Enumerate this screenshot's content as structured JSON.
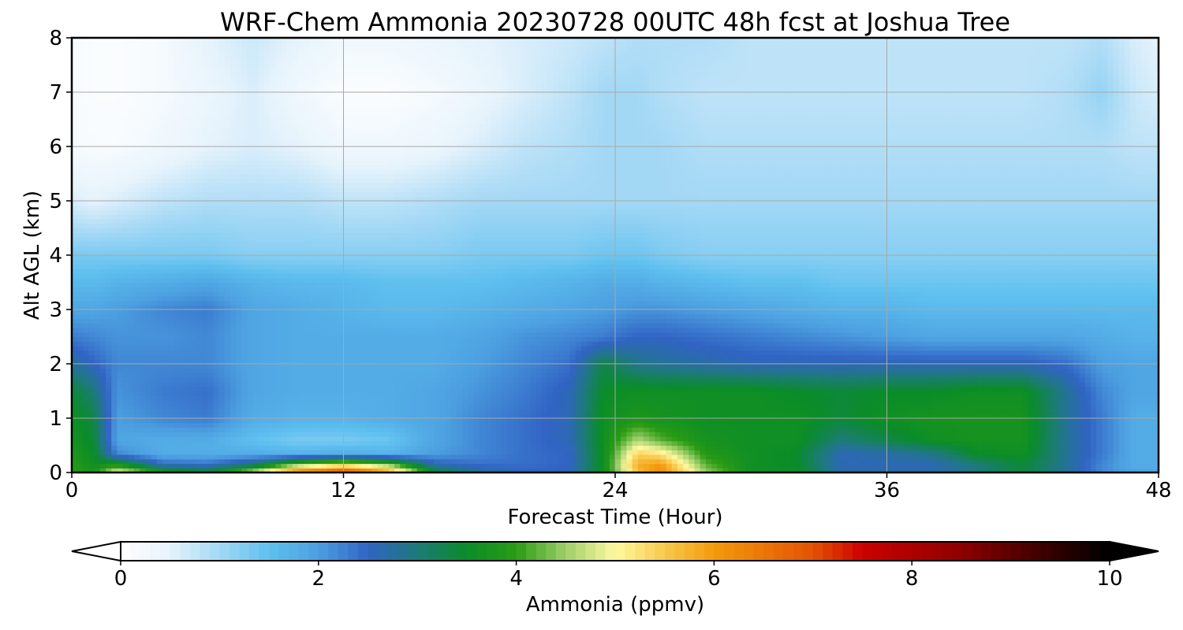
{
  "chart_data": {
    "type": "heatmap",
    "title": "WRF-Chem Ammonia  20230728 00UTC 48h fcst at Joshua Tree",
    "xlabel": "Forecast Time (Hour)",
    "ylabel": "Alt AGL (km)",
    "xlim": [
      0,
      48
    ],
    "ylim": [
      0,
      8
    ],
    "x_ticks": [
      "0",
      "12",
      "24",
      "36",
      "48"
    ],
    "y_ticks": [
      "0",
      "1",
      "2",
      "3",
      "4",
      "5",
      "6",
      "7",
      "8"
    ],
    "grid": true,
    "colorbar": {
      "label": "Ammonia  (ppmv)",
      "range": [
        0,
        10
      ],
      "ticks": [
        "0",
        "2",
        "4",
        "6",
        "8",
        "10"
      ],
      "extend": "both",
      "orientation": "horizontal",
      "stops": [
        {
          "v": 0.0,
          "c": "#ffffff"
        },
        {
          "v": 0.5,
          "c": "#e6f3fc"
        },
        {
          "v": 1.0,
          "c": "#a3d8f5"
        },
        {
          "v": 1.5,
          "c": "#5fc0ef"
        },
        {
          "v": 2.0,
          "c": "#4c9fe0"
        },
        {
          "v": 2.5,
          "c": "#3164c4"
        },
        {
          "v": 3.0,
          "c": "#1d7a7a"
        },
        {
          "v": 3.5,
          "c": "#0a8c28"
        },
        {
          "v": 4.0,
          "c": "#2a9b14"
        },
        {
          "v": 4.5,
          "c": "#9fcf6a"
        },
        {
          "v": 5.0,
          "c": "#fff9a0"
        },
        {
          "v": 5.5,
          "c": "#f8c94e"
        },
        {
          "v": 6.0,
          "c": "#f39a0c"
        },
        {
          "v": 7.0,
          "c": "#e45204"
        },
        {
          "v": 7.5,
          "c": "#cc0000"
        },
        {
          "v": 8.5,
          "c": "#8e0000"
        },
        {
          "v": 9.5,
          "c": "#2b0000"
        },
        {
          "v": 10.0,
          "c": "#000000"
        }
      ]
    },
    "x": [
      0,
      1,
      2,
      4,
      6,
      8,
      10,
      12,
      14,
      16,
      18,
      20,
      22,
      23.5,
      25,
      26,
      28,
      30,
      32,
      34,
      36,
      38,
      40,
      42,
      44,
      45.5,
      47,
      48
    ],
    "y": [
      0,
      0.15,
      0.35,
      0.6,
      1.0,
      1.5,
      2.0,
      2.5,
      3.0,
      3.5,
      4.0,
      5.0,
      6.0,
      7.0,
      8.0
    ],
    "z": [
      [
        4.0,
        3.8,
        5.0,
        4.0,
        3.6,
        4.8,
        6.5,
        7.2,
        6.0,
        3.6,
        2.9,
        2.6,
        2.6,
        3.6,
        5.6,
        6.2,
        4.5,
        3.6,
        3.6,
        2.7,
        2.7,
        2.7,
        3.0,
        3.4,
        2.8,
        2.2,
        1.9,
        1.9
      ],
      [
        3.9,
        3.6,
        3.8,
        2.5,
        2.4,
        3.0,
        4.4,
        5.0,
        4.4,
        2.6,
        2.4,
        2.4,
        2.5,
        3.6,
        5.8,
        6.0,
        4.2,
        3.6,
        3.5,
        2.6,
        2.6,
        2.6,
        3.0,
        3.4,
        2.8,
        2.2,
        1.8,
        1.8
      ],
      [
        3.8,
        3.5,
        2.2,
        1.8,
        1.8,
        1.8,
        1.7,
        1.8,
        1.7,
        2.0,
        2.2,
        2.4,
        2.5,
        3.6,
        5.4,
        5.2,
        3.9,
        3.6,
        3.5,
        2.6,
        2.7,
        2.9,
        3.5,
        3.6,
        2.8,
        2.3,
        1.8,
        1.8
      ],
      [
        3.7,
        3.4,
        1.9,
        1.8,
        1.8,
        1.5,
        1.3,
        1.3,
        1.4,
        1.9,
        2.2,
        2.4,
        2.6,
        3.6,
        4.6,
        4.2,
        3.7,
        3.6,
        3.6,
        3.0,
        3.3,
        3.6,
        3.7,
        3.7,
        2.8,
        2.3,
        1.8,
        1.8
      ],
      [
        3.6,
        3.3,
        2.0,
        2.2,
        2.3,
        1.8,
        1.7,
        1.7,
        1.8,
        1.9,
        2.2,
        2.4,
        2.6,
        3.6,
        3.8,
        3.7,
        3.6,
        3.6,
        3.6,
        3.4,
        3.6,
        3.7,
        3.7,
        3.7,
        2.8,
        2.3,
        1.8,
        1.8
      ],
      [
        3.4,
        3.0,
        2.1,
        2.3,
        2.4,
        1.9,
        1.8,
        1.8,
        1.8,
        1.9,
        2.1,
        2.3,
        2.6,
        3.5,
        3.6,
        3.6,
        3.6,
        3.6,
        3.5,
        3.4,
        3.5,
        3.5,
        3.6,
        3.6,
        2.8,
        2.2,
        1.9,
        1.9
      ],
      [
        2.8,
        2.5,
        2.2,
        2.2,
        2.2,
        1.9,
        1.8,
        1.8,
        1.8,
        1.8,
        2.0,
        2.2,
        2.4,
        3.3,
        2.9,
        2.8,
        2.7,
        2.6,
        2.6,
        2.6,
        2.6,
        2.6,
        2.6,
        2.6,
        2.4,
        2.0,
        1.9,
        1.9
      ],
      [
        2.3,
        2.2,
        2.1,
        2.1,
        2.2,
        1.9,
        1.8,
        1.8,
        1.8,
        1.8,
        1.9,
        2.1,
        2.2,
        2.3,
        2.5,
        2.5,
        2.4,
        2.3,
        2.2,
        2.1,
        2.0,
        1.9,
        1.9,
        1.9,
        1.9,
        1.8,
        1.7,
        1.7
      ],
      [
        1.9,
        1.9,
        2.0,
        2.2,
        2.3,
        1.9,
        1.8,
        1.7,
        1.6,
        1.6,
        1.7,
        1.8,
        1.9,
        2.0,
        2.1,
        2.1,
        2.0,
        1.9,
        1.8,
        1.7,
        1.7,
        1.6,
        1.6,
        1.6,
        1.6,
        1.6,
        1.6,
        1.6
      ],
      [
        1.6,
        1.6,
        1.7,
        1.8,
        1.9,
        1.7,
        1.6,
        1.6,
        1.5,
        1.5,
        1.5,
        1.6,
        1.7,
        1.8,
        1.8,
        1.7,
        1.6,
        1.5,
        1.5,
        1.4,
        1.4,
        1.4,
        1.4,
        1.4,
        1.4,
        1.4,
        1.4,
        1.4
      ],
      [
        1.3,
        1.3,
        1.3,
        1.3,
        1.3,
        1.2,
        1.2,
        1.2,
        1.2,
        1.2,
        1.3,
        1.3,
        1.3,
        1.4,
        1.4,
        1.3,
        1.2,
        1.2,
        1.2,
        1.2,
        1.2,
        1.2,
        1.2,
        1.2,
        1.2,
        1.2,
        1.2,
        1.2
      ],
      [
        0.6,
        0.5,
        0.6,
        0.8,
        0.9,
        0.9,
        0.9,
        0.8,
        0.8,
        0.9,
        1.0,
        1.0,
        1.0,
        1.0,
        1.0,
        1.0,
        1.0,
        1.0,
        1.0,
        1.0,
        1.0,
        1.0,
        1.0,
        1.0,
        1.0,
        1.0,
        1.0,
        1.0
      ],
      [
        0.2,
        0.15,
        0.15,
        0.3,
        0.5,
        0.6,
        0.5,
        0.3,
        0.3,
        0.4,
        0.6,
        0.8,
        0.9,
        1.0,
        1.0,
        1.0,
        0.9,
        0.9,
        0.9,
        0.9,
        0.9,
        0.9,
        0.9,
        0.9,
        0.9,
        0.9,
        0.8,
        0.8
      ],
      [
        0.2,
        0.1,
        0.1,
        0.2,
        0.4,
        0.6,
        0.3,
        0.1,
        0.1,
        0.2,
        0.4,
        0.6,
        0.8,
        1.0,
        1.0,
        0.9,
        0.8,
        0.8,
        0.8,
        0.8,
        0.8,
        0.8,
        0.8,
        0.8,
        0.9,
        1.1,
        0.7,
        0.6
      ],
      [
        0.2,
        0.1,
        0.1,
        0.2,
        0.5,
        0.7,
        0.5,
        0.3,
        0.3,
        0.4,
        0.5,
        0.6,
        0.7,
        0.8,
        0.9,
        0.9,
        0.9,
        0.8,
        0.8,
        0.8,
        0.8,
        0.8,
        0.8,
        0.8,
        0.8,
        0.9,
        0.6,
        0.5
      ]
    ]
  }
}
